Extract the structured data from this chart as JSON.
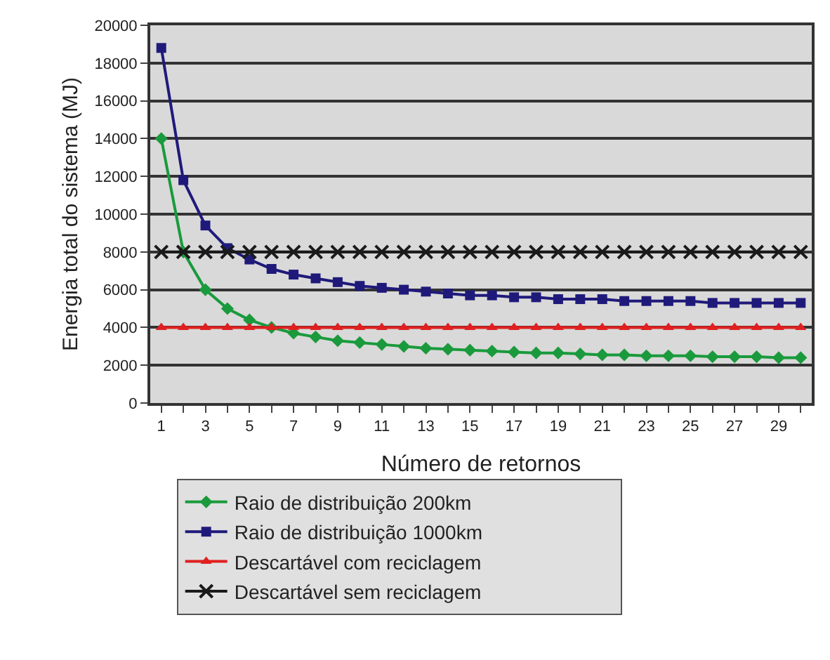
{
  "chart_data": {
    "type": "line",
    "xlabel": "Número de retornos",
    "ylabel": "Energia total do sistema (MJ)",
    "x": [
      1,
      2,
      3,
      4,
      5,
      6,
      7,
      8,
      9,
      10,
      11,
      12,
      13,
      14,
      15,
      16,
      17,
      18,
      19,
      20,
      21,
      22,
      23,
      24,
      25,
      26,
      27,
      28,
      29,
      30
    ],
    "series": [
      {
        "name": "Raio de distribuição 200km",
        "color": "#1a9a3c",
        "marker": "diamond",
        "values": [
          14000,
          8000,
          6000,
          5000,
          4400,
          4000,
          3700,
          3500,
          3300,
          3200,
          3100,
          3000,
          2900,
          2850,
          2800,
          2750,
          2700,
          2650,
          2650,
          2600,
          2550,
          2550,
          2500,
          2500,
          2500,
          2450,
          2450,
          2450,
          2400,
          2400
        ]
      },
      {
        "name": "Raio de distribuição 1000km",
        "color": "#1f1a7a",
        "marker": "square",
        "values": [
          18800,
          11800,
          9400,
          8200,
          7600,
          7100,
          6800,
          6600,
          6400,
          6200,
          6100,
          6000,
          5900,
          5800,
          5700,
          5700,
          5600,
          5600,
          5500,
          5500,
          5500,
          5400,
          5400,
          5400,
          5400,
          5300,
          5300,
          5300,
          5300,
          5300
        ]
      },
      {
        "name": "Descartável com reciclagem",
        "color": "#e02020",
        "marker": "triangle",
        "values": [
          4000,
          4000,
          4000,
          4000,
          4000,
          4000,
          4000,
          4000,
          4000,
          4000,
          4000,
          4000,
          4000,
          4000,
          4000,
          4000,
          4000,
          4000,
          4000,
          4000,
          4000,
          4000,
          4000,
          4000,
          4000,
          4000,
          4000,
          4000,
          4000,
          4000
        ]
      },
      {
        "name": "Descartável sem reciclagem",
        "color": "#1a1a1a",
        "marker": "cross",
        "values": [
          8000,
          8000,
          8000,
          8000,
          8000,
          8000,
          8000,
          8000,
          8000,
          8000,
          8000,
          8000,
          8000,
          8000,
          8000,
          8000,
          8000,
          8000,
          8000,
          8000,
          8000,
          8000,
          8000,
          8000,
          8000,
          8000,
          8000,
          8000,
          8000,
          8000
        ]
      }
    ],
    "xlim": [
      0.5,
      30.5
    ],
    "xticks": [
      1,
      {
        "value": 2,
        "label": null
      },
      3,
      {
        "value": 4,
        "label": null
      },
      5,
      {
        "value": 6,
        "label": null
      },
      7,
      {
        "value": 8,
        "label": null
      },
      9,
      {
        "value": 10,
        "label": null
      },
      11,
      {
        "value": 12,
        "label": null
      },
      13,
      {
        "value": 14,
        "label": null
      },
      15,
      {
        "value": 16,
        "label": null
      },
      17,
      {
        "value": 18,
        "label": null
      },
      19,
      {
        "value": 20,
        "label": null
      },
      21,
      {
        "value": 22,
        "label": null
      },
      23,
      {
        "value": 24,
        "label": null
      },
      25,
      {
        "value": 26,
        "label": null
      },
      27,
      {
        "value": 28,
        "label": null
      },
      29,
      {
        "value": 30,
        "label": null
      }
    ],
    "ylim": [
      0,
      20000
    ],
    "yticks": [
      0,
      2000,
      4000,
      6000,
      8000,
      10000,
      12000,
      14000,
      16000,
      18000,
      20000
    ],
    "grid": "y",
    "legend": "bottom",
    "line_style": "solid"
  }
}
